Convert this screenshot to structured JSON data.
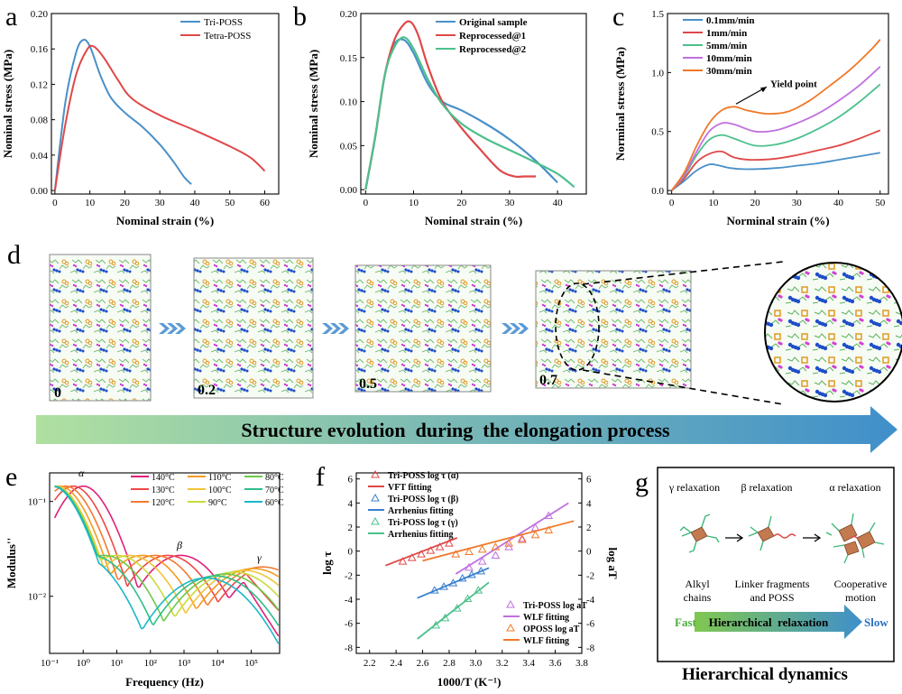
{
  "panel_labels": {
    "a": "a",
    "b": "b",
    "c": "c",
    "d": "d",
    "e": "e",
    "f": "f",
    "g": "g"
  },
  "colors": {
    "blue": "#4a90c8",
    "red": "#e04848",
    "green": "#4cc08c",
    "orange": "#f07828",
    "purple": "#c070e0",
    "banner_start": "#a8dca0",
    "banner_end": "#3f8fcb"
  },
  "chart_data": [
    {
      "id": "a",
      "type": "line",
      "xlabel": "Nominal strain (%)",
      "ylabel": "Nominal stress (MPa)",
      "xlim": [
        -1,
        64
      ],
      "ylim": [
        -0.004,
        0.2
      ],
      "xticks": [
        0,
        10,
        20,
        30,
        40,
        50,
        60
      ],
      "yticks": [
        0.0,
        0.04,
        0.08,
        0.12,
        0.16,
        0.2
      ],
      "ytick_labels": [
        "0.00",
        "0.04",
        "0.08",
        "0.12",
        "0.16",
        "0.20"
      ],
      "legend": "top-right",
      "series": [
        {
          "name": "Tri-POSS",
          "color": "#4a90c8",
          "x": [
            0,
            3,
            6,
            8,
            10,
            13,
            16,
            20,
            25,
            30,
            34,
            37,
            39
          ],
          "y": [
            0,
            0.1,
            0.155,
            0.17,
            0.163,
            0.13,
            0.105,
            0.088,
            0.072,
            0.052,
            0.032,
            0.015,
            0.007
          ]
        },
        {
          "name": "Tetra-POSS",
          "color": "#e04848",
          "x": [
            0,
            3,
            6,
            9,
            11,
            14,
            18,
            22,
            30,
            40,
            50,
            56,
            60
          ],
          "y": [
            0,
            0.075,
            0.13,
            0.158,
            0.163,
            0.15,
            0.125,
            0.104,
            0.085,
            0.068,
            0.05,
            0.037,
            0.022
          ]
        }
      ]
    },
    {
      "id": "b",
      "type": "line",
      "xlabel": "Nominal strain (%)",
      "ylabel": "Nominal stress (MPa)",
      "xlim": [
        -1,
        46
      ],
      "ylim": [
        -0.005,
        0.2
      ],
      "xticks": [
        0,
        10,
        20,
        30,
        40
      ],
      "yticks": [
        0.0,
        0.05,
        0.1,
        0.15,
        0.2
      ],
      "ytick_labels": [
        "0.00",
        "0.05",
        "0.10",
        "0.15",
        "0.20"
      ],
      "legend": "top-right",
      "series": [
        {
          "name": "Original sample",
          "color": "#4a90c8",
          "x": [
            0,
            2,
            4,
            6,
            8,
            10,
            13,
            16,
            20,
            25,
            30,
            35,
            40
          ],
          "y": [
            0,
            0.06,
            0.13,
            0.165,
            0.17,
            0.155,
            0.12,
            0.1,
            0.09,
            0.075,
            0.057,
            0.035,
            0.008
          ]
        },
        {
          "name": "Reprocessed@1",
          "color": "#e04848",
          "x": [
            0,
            2,
            4,
            6,
            8,
            9.5,
            11,
            13,
            16,
            20,
            24,
            28,
            31,
            33,
            35.5
          ],
          "y": [
            0,
            0.06,
            0.13,
            0.17,
            0.188,
            0.19,
            0.175,
            0.14,
            0.1,
            0.07,
            0.045,
            0.022,
            0.015,
            0.015,
            0.015
          ]
        },
        {
          "name": "Reprocessed@2",
          "color": "#4cc08c",
          "x": [
            0,
            2,
            4,
            6,
            8,
            10,
            13,
            16,
            20,
            25,
            30,
            35,
            40,
            43.5
          ],
          "y": [
            0,
            0.06,
            0.13,
            0.162,
            0.173,
            0.16,
            0.125,
            0.097,
            0.075,
            0.058,
            0.045,
            0.032,
            0.018,
            0.003
          ]
        }
      ]
    },
    {
      "id": "c",
      "type": "line",
      "xlabel": "Norminal strain (%)",
      "ylabel": "Norminal stress (MPa)",
      "xlim": [
        -1,
        52
      ],
      "ylim": [
        -0.03,
        1.5
      ],
      "xticks": [
        0,
        10,
        20,
        30,
        40,
        50
      ],
      "yticks": [
        0.0,
        0.5,
        1.0,
        1.5
      ],
      "ytick_labels": [
        "0.0",
        "0.5",
        "1.0",
        "1.5"
      ],
      "legend": "top-left",
      "annotation": {
        "text": "Yield point",
        "x": 15,
        "y": 0.71
      },
      "series": [
        {
          "name": "0.1mm/min",
          "color": "#4a90c8",
          "x": [
            0,
            3,
            6,
            9,
            11,
            14,
            18,
            25,
            30,
            35,
            40,
            45,
            50
          ],
          "y": [
            0,
            0.08,
            0.17,
            0.22,
            0.215,
            0.19,
            0.18,
            0.19,
            0.21,
            0.23,
            0.26,
            0.29,
            0.32
          ]
        },
        {
          "name": "1mm/min",
          "color": "#e04848",
          "x": [
            0,
            3,
            6,
            9,
            12,
            15,
            19,
            25,
            30,
            35,
            40,
            45,
            50
          ],
          "y": [
            0,
            0.1,
            0.24,
            0.31,
            0.33,
            0.28,
            0.26,
            0.27,
            0.3,
            0.34,
            0.38,
            0.44,
            0.51
          ]
        },
        {
          "name": "5mm/min",
          "color": "#4cc08c",
          "x": [
            0,
            3,
            6,
            9,
            12,
            15,
            20,
            25,
            30,
            35,
            40,
            45,
            50
          ],
          "y": [
            0,
            0.12,
            0.3,
            0.43,
            0.47,
            0.44,
            0.38,
            0.39,
            0.44,
            0.52,
            0.62,
            0.75,
            0.9
          ]
        },
        {
          "name": "10mm/min",
          "color": "#c070e0",
          "x": [
            0,
            3,
            6,
            9,
            12,
            15,
            20,
            25,
            30,
            35,
            40,
            45,
            50
          ],
          "y": [
            0,
            0.13,
            0.33,
            0.5,
            0.57,
            0.56,
            0.5,
            0.51,
            0.57,
            0.65,
            0.76,
            0.89,
            1.05
          ]
        },
        {
          "name": "30mm/min",
          "color": "#f07828",
          "x": [
            0,
            3,
            6,
            9,
            12,
            15,
            18,
            23,
            28,
            33,
            38,
            43,
            48,
            50
          ],
          "y": [
            0,
            0.15,
            0.38,
            0.57,
            0.68,
            0.71,
            0.68,
            0.65,
            0.67,
            0.76,
            0.89,
            1.03,
            1.2,
            1.28
          ]
        }
      ]
    },
    {
      "id": "e",
      "type": "line",
      "xscale": "log",
      "yscale": "log",
      "xlabel": "Frequency (Hz)",
      "ylabel": "Modulus''",
      "xlim": [
        0.1,
        700000
      ],
      "ylim": [
        0.0025,
        0.2
      ],
      "xticks": [
        0.1,
        1,
        10,
        100,
        1000,
        10000,
        100000
      ],
      "xtick_labels": [
        "10⁻¹",
        "10⁰",
        "10¹",
        "10²",
        "10³",
        "10⁴",
        "10⁵"
      ],
      "yticks": [
        0.01,
        0.1
      ],
      "ytick_labels": [
        "10⁻²",
        "10⁻¹"
      ],
      "peak_labels": [
        "α",
        "β",
        "γ"
      ],
      "legend": "top-right",
      "series": [
        {
          "name": "140°C",
          "color": "#e0207a",
          "alpha_peak": 1.0
        },
        {
          "name": "130°C",
          "color": "#ee4848",
          "alpha_peak": 0.5
        },
        {
          "name": "120°C",
          "color": "#f47a30",
          "alpha_peak": 0.3
        },
        {
          "name": "110°C",
          "color": "#f59b1f",
          "alpha_peak": 0.2
        },
        {
          "name": "100°C",
          "color": "#f0c43a",
          "alpha_peak": 0.15
        },
        {
          "name": "90°C",
          "color": "#c8dc3c",
          "alpha_peak": 0.14
        },
        {
          "name": "80°C",
          "color": "#6cc84a",
          "alpha_peak": 0.13
        },
        {
          "name": "70°C",
          "color": "#2dbf88",
          "alpha_peak": 0.13
        },
        {
          "name": "60°C",
          "color": "#19b8c8",
          "alpha_peak": 0.12
        }
      ]
    },
    {
      "id": "f",
      "type": "scatter",
      "xlabel": "1000/T (K⁻¹)",
      "ylabel": "log τ",
      "y2label": "log aT",
      "xlim": [
        2.1,
        3.8
      ],
      "ylim": [
        -8.5,
        6.5
      ],
      "y2lim": [
        -8.5,
        6.5
      ],
      "xticks": [
        2.2,
        2.4,
        2.6,
        2.8,
        3.0,
        3.2,
        3.4,
        3.6,
        3.8
      ],
      "xtick_labels": [
        "2.2",
        "2.4",
        "2.6",
        "2.8",
        "3.0",
        "3.2",
        "3.4",
        "3.6",
        "3.8"
      ],
      "yticks": [
        -8,
        -6,
        -4,
        -2,
        0,
        2,
        4,
        6
      ],
      "ytick_labels": [
        "-8",
        "-6",
        "-4",
        "-2",
        "0",
        "2",
        "4",
        "6"
      ],
      "legend_top": [
        "Tri-POSS log τ (α)",
        "VFT fitting",
        "Tri-POSS log τ (β)",
        "Arrhenius fitting",
        "Tri-POSS log τ (γ)",
        "Arrhenius fitting"
      ],
      "legend_bottom": [
        "Tri-POSS log aT",
        "WLF fitting",
        "OPOSS log aT",
        "WLF fitting"
      ],
      "series": [
        {
          "name": "Tri-POSS log τ (α)",
          "color": "#e04848",
          "marker": "triangle",
          "x": [
            2.45,
            2.52,
            2.59,
            2.66,
            2.73,
            2.8
          ],
          "y": [
            -0.9,
            -0.6,
            -0.3,
            0.0,
            0.3,
            0.6
          ],
          "fit": {
            "x": [
              2.32,
              2.86
            ],
            "y": [
              -1.2,
              1.1
            ]
          }
        },
        {
          "name": "Tri-POSS log τ (β)",
          "color": "#3a7fd0",
          "marker": "triangle",
          "x": [
            2.69,
            2.76,
            2.83,
            2.9,
            2.97,
            3.04
          ],
          "y": [
            -3.3,
            -3.0,
            -2.7,
            -2.3,
            -2.0,
            -1.7
          ],
          "fit": {
            "x": [
              2.56,
              3.1
            ],
            "y": [
              -3.9,
              -1.4
            ]
          }
        },
        {
          "name": "Tri-POSS log τ (γ)",
          "color": "#4cc08c",
          "marker": "triangle",
          "x": [
            2.7,
            2.77,
            2.86,
            2.94,
            3.02
          ],
          "y": [
            -6.2,
            -5.6,
            -4.8,
            -4.0,
            -3.3
          ],
          "fit": {
            "x": [
              2.56,
              3.1
            ],
            "y": [
              -7.3,
              -2.6
            ]
          }
        },
        {
          "name": "Tri-POSS log aT",
          "color": "#c070e0",
          "marker": "triangle",
          "x": [
            2.95,
            3.05,
            3.15,
            3.25,
            3.35,
            3.45,
            3.55
          ],
          "y": [
            -1.4,
            -0.9,
            -0.4,
            0.3,
            1.0,
            1.9,
            2.9
          ],
          "fit": {
            "x": [
              2.85,
              3.7
            ],
            "y": [
              -1.9,
              4.0
            ]
          }
        },
        {
          "name": "OPOSS log aT",
          "color": "#f07828",
          "marker": "triangle",
          "x": [
            2.85,
            2.95,
            3.05,
            3.15,
            3.25,
            3.35,
            3.45,
            3.55
          ],
          "y": [
            -0.3,
            -0.1,
            0.1,
            0.3,
            0.6,
            0.9,
            1.3,
            1.7
          ],
          "fit": {
            "x": [
              2.6,
              3.74
            ],
            "y": [
              -0.8,
              2.5
            ]
          }
        }
      ]
    }
  ],
  "panel_d": {
    "frame_labels": [
      "0",
      "0.2",
      "0.5",
      "0.7"
    ],
    "banner_text": "Structure evolution  during  the elongation process"
  },
  "panel_g": {
    "relaxations": [
      "γ relaxation",
      "β relaxation",
      "α relaxation"
    ],
    "captions": [
      [
        "Alkyl",
        "chains"
      ],
      [
        "Linker fragments",
        "and POSS"
      ],
      [
        "Cooperative",
        "motion"
      ]
    ],
    "arrow_left": "Fast",
    "arrow_text": "Hierarchical  relaxation",
    "arrow_right": "Slow",
    "title": "Hierarchical dynamics"
  }
}
